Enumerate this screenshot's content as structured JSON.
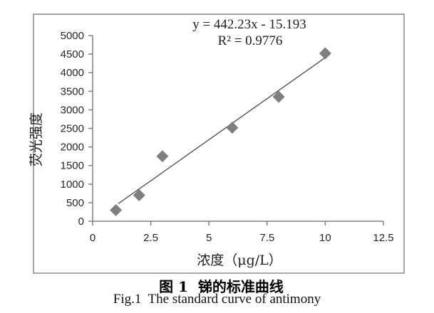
{
  "figure": {
    "caption_zh": "图 1  锑的标准曲线",
    "caption_en": "Fig.1  The standard curve of antimony"
  },
  "chart_data": {
    "type": "scatter",
    "title": "",
    "xlabel": "浓度（μg/L）",
    "ylabel": "荧光强度",
    "xlim": [
      0,
      12.5
    ],
    "ylim": [
      0,
      5000
    ],
    "x_ticks": [
      "0",
      "2.5",
      "5",
      "7.5",
      "10",
      "12.5"
    ],
    "y_ticks": [
      "0",
      "500",
      "1000",
      "1500",
      "2000",
      "2500",
      "3000",
      "3500",
      "4000",
      "4500",
      "5000"
    ],
    "grid": false,
    "legend": null,
    "marker": "diamond",
    "points": [
      {
        "x": 1,
        "y": 300
      },
      {
        "x": 2,
        "y": 700
      },
      {
        "x": 3,
        "y": 1750
      },
      {
        "x": 6,
        "y": 2520
      },
      {
        "x": 8,
        "y": 3350
      },
      {
        "x": 10,
        "y": 4520
      }
    ],
    "trendline": {
      "equation_label": "y = 442.23x - 15.193",
      "r2_label": "R² = 0.9776",
      "slope": 442.23,
      "intercept": -15.193,
      "x_start": 1.1,
      "x_end": 10.2
    },
    "colors": {
      "marker": "#7f7f7f",
      "line": "#4a4a4a",
      "axis": "#808080",
      "frame_border": "#a6a6a6",
      "text": "#262626"
    }
  }
}
